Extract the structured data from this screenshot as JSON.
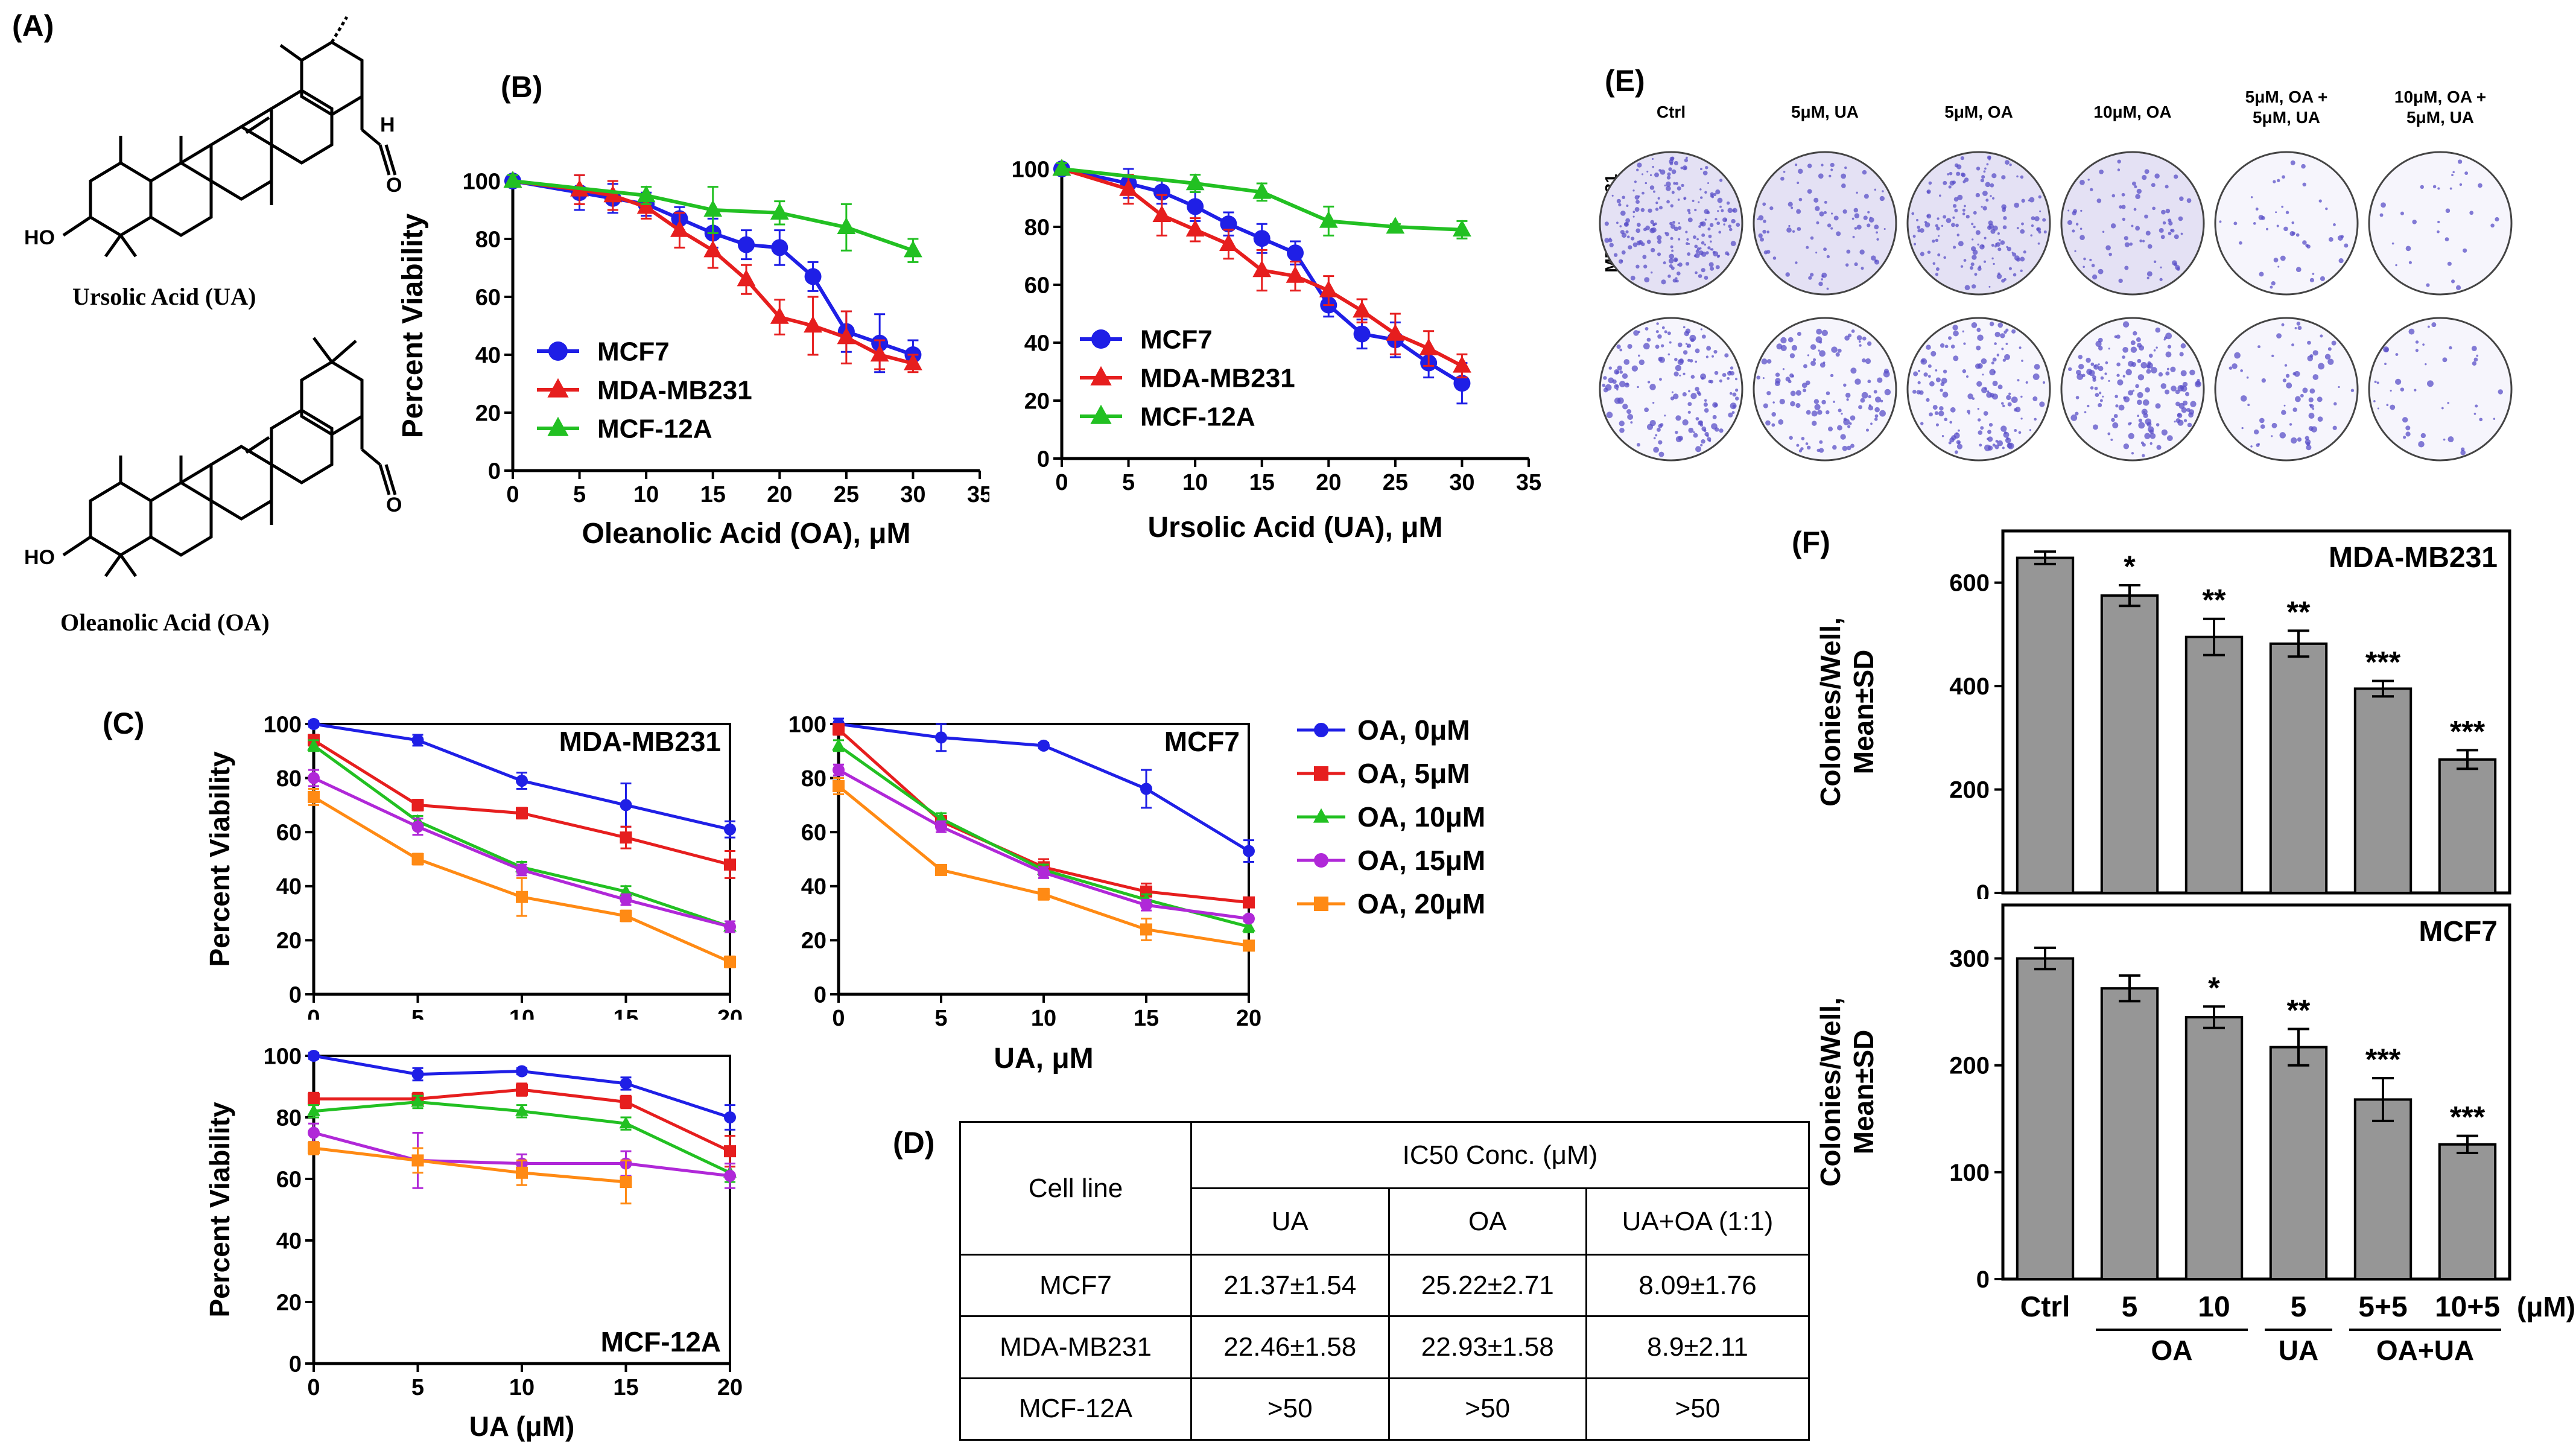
{
  "panels": {
    "A": "(A)",
    "B": "(B)",
    "C": "(C)",
    "D": "(D)",
    "E": "(E)",
    "F": "(F)"
  },
  "structures": {
    "ua_name": "Ursolic Acid (UA)",
    "oa_name": "Oleanolic Acid (OA)",
    "atom_ho": "HO",
    "atom_h": "H",
    "atom_o": "O"
  },
  "chart_data": [
    {
      "id": "B1",
      "type": "line",
      "xlabel": "Oleanolic Acid (OA), μM",
      "ylabel": "Percent Viability",
      "xlim": [
        0,
        35
      ],
      "ylim": [
        0,
        100
      ],
      "xticks": [
        0,
        5,
        10,
        15,
        20,
        25,
        30,
        35
      ],
      "yticks": [
        0,
        20,
        40,
        60,
        80,
        100
      ],
      "legend_position": "lower-left",
      "series": [
        {
          "name": "MCF7",
          "color": "#1f1fe6",
          "marker": "circle",
          "x": [
            0,
            5,
            7.5,
            10,
            12.5,
            15,
            17.5,
            20,
            22.5,
            25,
            27.5,
            30
          ],
          "y": [
            100,
            96,
            94,
            92,
            87,
            82,
            78,
            77,
            67,
            48,
            44,
            40
          ],
          "err": [
            2,
            6,
            5,
            4,
            4,
            5,
            5,
            6,
            5,
            7,
            10,
            5
          ]
        },
        {
          "name": "MDA-MB231",
          "color": "#e61e1e",
          "marker": "triangle",
          "x": [
            0,
            5,
            7.5,
            10,
            12.5,
            15,
            17.5,
            20,
            22.5,
            25,
            27.5,
            30
          ],
          "y": [
            100,
            97,
            95,
            91,
            83,
            76,
            66,
            53,
            50,
            46,
            40,
            37
          ],
          "err": [
            2,
            5,
            5,
            4,
            6,
            6,
            5,
            6,
            10,
            9,
            5,
            3
          ]
        },
        {
          "name": "MCF-12A",
          "color": "#22c022",
          "marker": "triangle",
          "x": [
            0,
            10,
            15,
            20,
            25,
            30
          ],
          "y": [
            100,
            95,
            90,
            89,
            84,
            76
          ],
          "err": [
            2,
            3,
            8,
            4,
            8,
            4
          ]
        }
      ]
    },
    {
      "id": "B2",
      "type": "line",
      "xlabel": "Ursolic Acid (UA), μM",
      "ylabel": "",
      "xlim": [
        0,
        35
      ],
      "ylim": [
        0,
        100
      ],
      "xticks": [
        0,
        5,
        10,
        15,
        20,
        25,
        30,
        35
      ],
      "yticks": [
        0,
        20,
        40,
        60,
        80,
        100
      ],
      "legend_position": "lower-left",
      "series": [
        {
          "name": "MCF7",
          "color": "#1f1fe6",
          "marker": "circle",
          "x": [
            0,
            5,
            7.5,
            10,
            12.5,
            15,
            17.5,
            20,
            22.5,
            25,
            27.5,
            30
          ],
          "y": [
            100,
            95,
            92,
            87,
            81,
            76,
            71,
            53,
            43,
            41,
            33,
            26
          ],
          "err": [
            2,
            5,
            4,
            5,
            4,
            5,
            4,
            4,
            5,
            6,
            5,
            7
          ]
        },
        {
          "name": "MDA-MB231",
          "color": "#e61e1e",
          "marker": "triangle",
          "x": [
            0,
            5,
            7.5,
            10,
            12.5,
            15,
            17.5,
            20,
            22.5,
            25,
            27.5,
            30
          ],
          "y": [
            100,
            93,
            84,
            79,
            74,
            65,
            63,
            58,
            51,
            43,
            38,
            32
          ],
          "err": [
            2,
            5,
            7,
            4,
            5,
            7,
            5,
            5,
            4,
            7,
            6,
            4
          ]
        },
        {
          "name": "MCF-12A",
          "color": "#22c022",
          "marker": "triangle",
          "x": [
            0,
            10,
            15,
            20,
            25,
            30
          ],
          "y": [
            100,
            95,
            92,
            82,
            80,
            79
          ],
          "err": [
            2,
            3,
            3,
            5,
            1,
            3
          ]
        }
      ]
    },
    {
      "id": "C1",
      "type": "line",
      "inset_title": "MDA-MB231",
      "xlabel": "",
      "ylabel": "Percent Viability",
      "xlim": [
        0,
        20
      ],
      "ylim": [
        0,
        100
      ],
      "xticks": [
        0,
        5,
        10,
        15,
        20
      ],
      "yticks": [
        0,
        20,
        40,
        60,
        80,
        100
      ],
      "series": [
        {
          "name": "OA, 0μM",
          "color": "#1f1fe6",
          "marker": "circle",
          "x": [
            0,
            5,
            10,
            15,
            20
          ],
          "y": [
            100,
            94,
            79,
            70,
            61
          ],
          "err": [
            1,
            2,
            3,
            8,
            3
          ]
        },
        {
          "name": "OA, 5μM",
          "color": "#e61e1e",
          "marker": "square",
          "x": [
            0,
            5,
            10,
            15,
            20
          ],
          "y": [
            94,
            70,
            67,
            58,
            48
          ],
          "err": [
            2,
            2,
            2,
            4,
            5
          ]
        },
        {
          "name": "OA, 10μM",
          "color": "#22c022",
          "marker": "triangle",
          "x": [
            0,
            5,
            10,
            15,
            20
          ],
          "y": [
            92,
            64,
            47,
            38,
            25
          ],
          "err": [
            2,
            2,
            2,
            2,
            2
          ]
        },
        {
          "name": "OA, 15μM",
          "color": "#b028d8",
          "marker": "circle",
          "x": [
            0,
            5,
            10,
            15,
            20
          ],
          "y": [
            80,
            62,
            46,
            35,
            25
          ],
          "err": [
            3,
            3,
            2,
            2,
            2
          ]
        },
        {
          "name": "OA, 20μM",
          "color": "#ff8a14",
          "marker": "square",
          "x": [
            0,
            5,
            10,
            15,
            20
          ],
          "y": [
            73,
            50,
            36,
            29,
            12
          ],
          "err": [
            3,
            2,
            7,
            2,
            2
          ]
        }
      ]
    },
    {
      "id": "C2",
      "type": "line",
      "inset_title": "MCF7",
      "xlabel": "UA, μM",
      "ylabel": "",
      "xlim": [
        0,
        20
      ],
      "ylim": [
        0,
        100
      ],
      "xticks": [
        0,
        5,
        10,
        15,
        20
      ],
      "yticks": [
        0,
        20,
        40,
        60,
        80,
        100
      ],
      "series": [
        {
          "name": "OA, 0μM",
          "color": "#1f1fe6",
          "marker": "circle",
          "x": [
            0,
            5,
            10,
            15,
            20
          ],
          "y": [
            100,
            95,
            92,
            76,
            53
          ],
          "err": [
            2,
            5,
            1,
            7,
            4
          ]
        },
        {
          "name": "OA, 5μM",
          "color": "#e61e1e",
          "marker": "square",
          "x": [
            0,
            5,
            10,
            15,
            20
          ],
          "y": [
            98,
            64,
            47,
            38,
            34
          ],
          "err": [
            2,
            2,
            3,
            3,
            1
          ]
        },
        {
          "name": "OA, 10μM",
          "color": "#22c022",
          "marker": "triangle",
          "x": [
            0,
            5,
            10,
            15,
            20
          ],
          "y": [
            92,
            65,
            46,
            35,
            25
          ],
          "err": [
            2,
            2,
            2,
            2,
            2
          ]
        },
        {
          "name": "OA, 15μM",
          "color": "#b028d8",
          "marker": "circle",
          "x": [
            0,
            5,
            10,
            15,
            20
          ],
          "y": [
            83,
            62,
            45,
            33,
            28
          ],
          "err": [
            2,
            2,
            2,
            2,
            1
          ]
        },
        {
          "name": "OA, 20μM",
          "color": "#ff8a14",
          "marker": "square",
          "x": [
            0,
            5,
            10,
            15,
            20
          ],
          "y": [
            77,
            46,
            37,
            24,
            18
          ],
          "err": [
            3,
            1,
            2,
            4,
            1
          ]
        }
      ]
    },
    {
      "id": "C3",
      "type": "line",
      "inset_title": "MCF-12A",
      "xlabel": "UA (μM)",
      "ylabel": "Percent Viability",
      "xlim": [
        0,
        20
      ],
      "ylim": [
        0,
        100
      ],
      "xticks": [
        0,
        5,
        10,
        15,
        20
      ],
      "yticks": [
        0,
        20,
        40,
        60,
        80,
        100
      ],
      "series": [
        {
          "name": "OA, 0μM",
          "color": "#1f1fe6",
          "marker": "circle",
          "x": [
            0,
            5,
            10,
            15,
            20
          ],
          "y": [
            100,
            94,
            95,
            91,
            80
          ],
          "err": [
            1,
            2,
            1,
            2,
            4
          ]
        },
        {
          "name": "OA, 5μM",
          "color": "#e61e1e",
          "marker": "square",
          "x": [
            0,
            5,
            10,
            15,
            20
          ],
          "y": [
            86,
            86,
            89,
            85,
            69
          ],
          "err": [
            2,
            2,
            2,
            2,
            5
          ]
        },
        {
          "name": "OA, 10μM",
          "color": "#22c022",
          "marker": "triangle",
          "x": [
            0,
            5,
            10,
            15,
            20
          ],
          "y": [
            82,
            85,
            82,
            78,
            62
          ],
          "err": [
            2,
            2,
            2,
            2,
            3
          ]
        },
        {
          "name": "OA, 15μM",
          "color": "#b028d8",
          "marker": "circle",
          "x": [
            0,
            5,
            10,
            15,
            20
          ],
          "y": [
            75,
            66,
            65,
            65,
            61
          ],
          "err": [
            3,
            9,
            3,
            4,
            4
          ]
        },
        {
          "name": "OA, 20μM",
          "color": "#ff8a14",
          "marker": "square",
          "x": [
            0,
            5,
            10,
            15,
            20
          ],
          "y": [
            70,
            66,
            62,
            59,
            null
          ],
          "err": [
            2,
            4,
            4,
            7,
            0
          ]
        }
      ]
    },
    {
      "id": "F1",
      "type": "bar",
      "inset_title": "MDA-MB231",
      "ylabel_line1": "Colonies/Well,",
      "ylabel_line2": "Mean±SD",
      "ylim": [
        0,
        700
      ],
      "yticks": [
        0,
        200,
        400,
        600
      ],
      "categories": [
        "Ctrl",
        "5",
        "10",
        "5",
        "5+5",
        "10+5"
      ],
      "values": [
        648,
        575,
        495,
        482,
        395,
        258
      ],
      "err": [
        12,
        20,
        35,
        25,
        15,
        18
      ],
      "significance": [
        "",
        "*",
        "**",
        "**",
        "***",
        "***"
      ],
      "bar_color": "#969696"
    },
    {
      "id": "F2",
      "type": "bar",
      "inset_title": "MCF7",
      "ylabel_line1": "Colonies/Well,",
      "ylabel_line2": "Mean±SD",
      "ylim": [
        0,
        350
      ],
      "yticks": [
        0,
        100,
        200,
        300
      ],
      "categories": [
        "Ctrl",
        "5",
        "10",
        "5",
        "5+5",
        "10+5"
      ],
      "values": [
        300,
        272,
        245,
        217,
        168,
        126
      ],
      "err": [
        10,
        12,
        10,
        17,
        20,
        8
      ],
      "significance": [
        "",
        "",
        "*",
        "**",
        "***",
        "***"
      ],
      "bar_color": "#969696",
      "unit_label": "(μM)",
      "groups": [
        {
          "label": "OA",
          "from": 1,
          "to": 2
        },
        {
          "label": "UA",
          "from": 3,
          "to": 3
        },
        {
          "label": "OA+UA",
          "from": 4,
          "to": 5
        }
      ]
    }
  ],
  "legend_C": [
    "OA, 0μM",
    "OA, 5μM",
    "OA, 10μM",
    "OA, 15μM",
    "OA, 20μM"
  ],
  "ic50_table": {
    "cell_line_header": "Cell line",
    "group_header": "IC50 Conc. (μM)",
    "columns": [
      "UA",
      "OA",
      "UA+OA (1:1)"
    ],
    "rows": [
      {
        "line": "MCF7",
        "ua": "21.37±1.54",
        "oa": "25.22±2.71",
        "combo": "8.09±1.76"
      },
      {
        "line": "MDA-MB231",
        "ua": "22.46±1.58",
        "oa": "22.93±1.58",
        "combo": "8.9±2.11"
      },
      {
        "line": "MCF-12A",
        "ua": ">50",
        "oa": ">50",
        "combo": ">50"
      }
    ]
  },
  "colony_plates": {
    "columns": [
      "Ctrl",
      "5μM, UA",
      "5μM, OA",
      "10μM, OA",
      "5μM, OA + 5μM, UA",
      "10μM, OA + 5μM, UA"
    ],
    "rows": [
      "MDA-MB231",
      "MCF7"
    ],
    "colony_color": "#5a4fc8"
  }
}
